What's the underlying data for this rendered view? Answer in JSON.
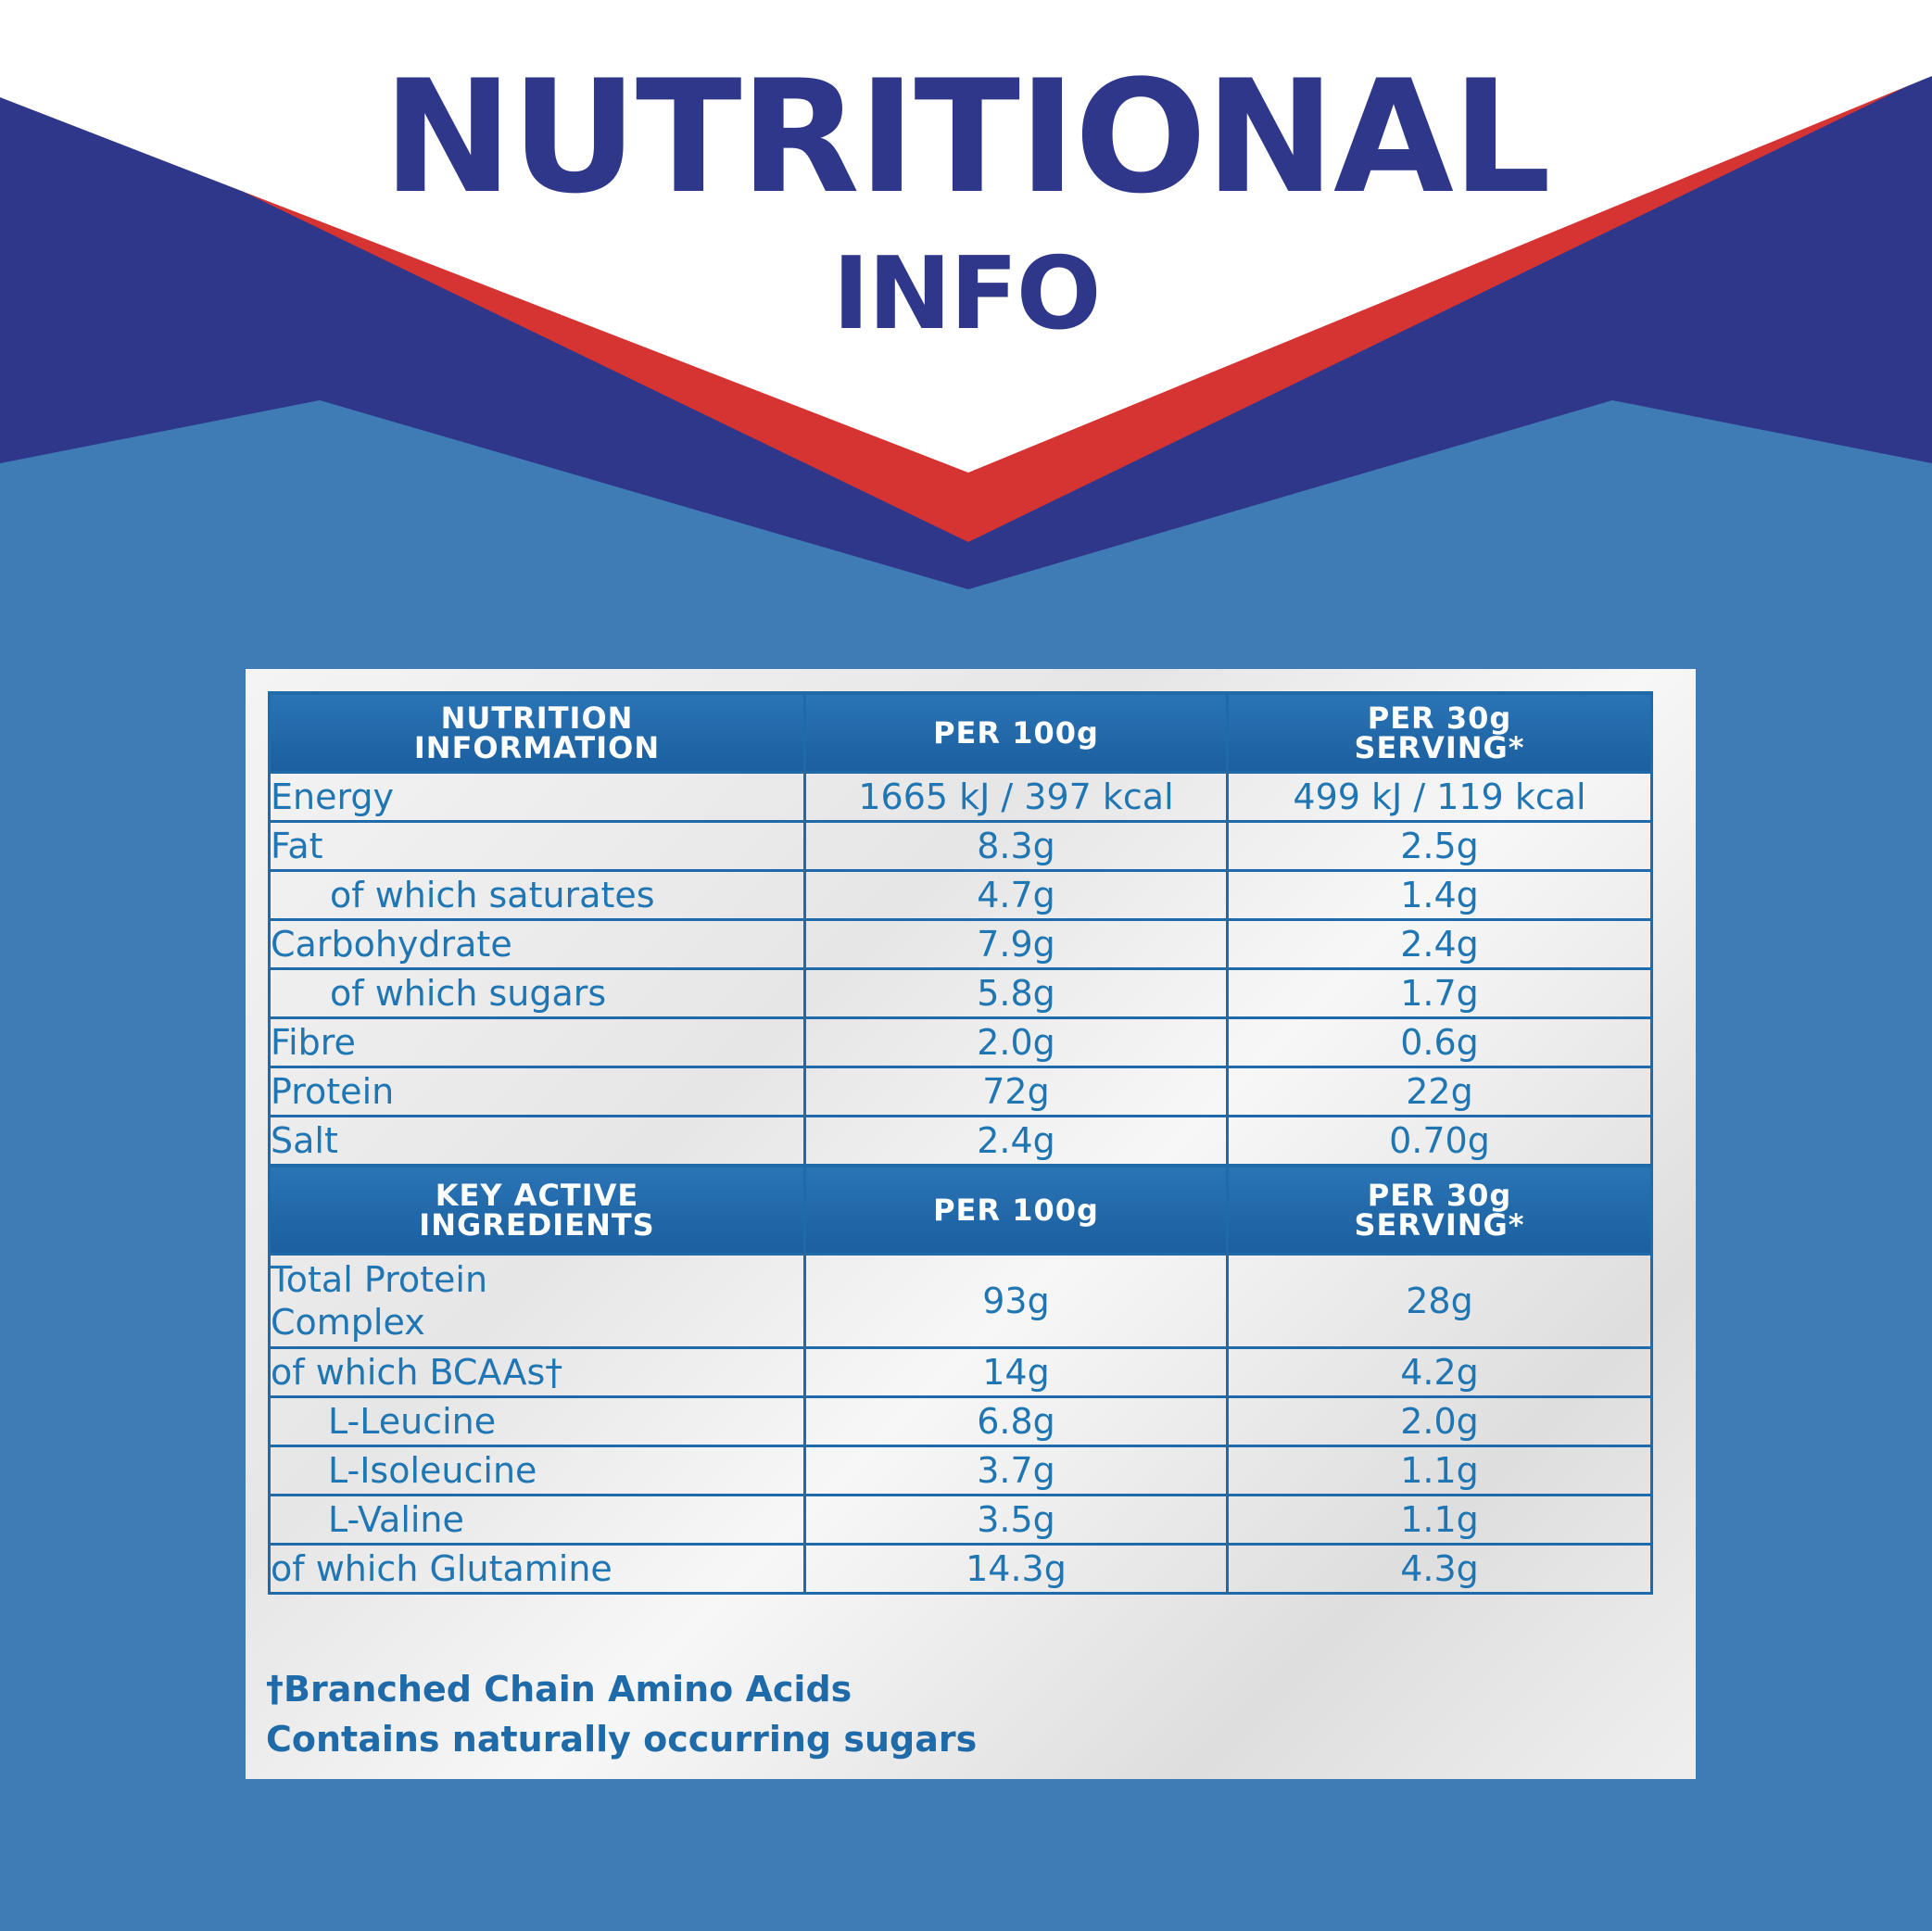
{
  "header": {
    "title_line1": "NUTRITIONAL",
    "title_line2": "INFO",
    "colors": {
      "navy": "#2f378a",
      "red": "#d63333",
      "white": "#ffffff",
      "background": "#3f7bb5"
    }
  },
  "nutrition_table": {
    "headers": [
      "NUTRITION INFORMATION",
      "PER 100g",
      "PER 30g SERVING*"
    ],
    "rows": [
      {
        "label": "Energy",
        "per100": "1665 kJ / 397 kcal",
        "per30": "499 kJ / 119 kcal"
      },
      {
        "label": "Fat",
        "per100": "8.3g",
        "per30": "2.5g"
      },
      {
        "label": "of which saturates",
        "per100": "4.7g",
        "per30": "1.4g"
      },
      {
        "label": "Carbohydrate",
        "per100": "7.9g",
        "per30": "2.4g"
      },
      {
        "label": "of which sugars",
        "per100": "5.8g",
        "per30": "1.7g"
      },
      {
        "label": "Fibre",
        "per100": "2.0g",
        "per30": "0.6g"
      },
      {
        "label": "Protein",
        "per100": "72g",
        "per30": "22g"
      },
      {
        "label": "Salt",
        "per100": "2.4g",
        "per30": "0.70g"
      }
    ]
  },
  "ingredients_table": {
    "headers": [
      "KEY ACTIVE INGREDIENTS",
      "PER 100g",
      "PER 30g SERVING*"
    ],
    "rows": [
      {
        "label": "Total Protein Complex",
        "per100": "93g",
        "per30": "28g"
      },
      {
        "label": "of which BCAAs†",
        "per100": "14g",
        "per30": "4.2g"
      },
      {
        "label": "L-Leucine",
        "per100": "6.8g",
        "per30": "2.0g"
      },
      {
        "label": "L-Isoleucine",
        "per100": "3.7g",
        "per30": "1.1g"
      },
      {
        "label": "L-Valine",
        "per100": "3.5g",
        "per30": "1.1g"
      },
      {
        "label": "of which Glutamine",
        "per100": "14.3g",
        "per30": "4.3g"
      }
    ]
  },
  "footnotes": [
    "†Branched Chain Amino Acids",
    "Contains naturally occurring sugars"
  ]
}
